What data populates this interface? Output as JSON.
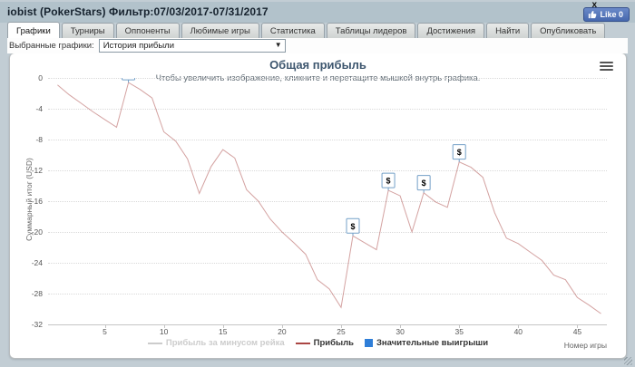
{
  "header": {
    "title": "iobist (PokerStars) Фильтр:07/03/2017-07/31/2017",
    "close": "x",
    "like_label": "Like 0"
  },
  "tabs": {
    "items": [
      {
        "label": "Графики",
        "active": true
      },
      {
        "label": "Турниры",
        "active": false
      },
      {
        "label": "Оппоненты",
        "active": false
      },
      {
        "label": "Любимые игры",
        "active": false
      },
      {
        "label": "Статистика",
        "active": false
      },
      {
        "label": "Таблицы лидеров",
        "active": false
      },
      {
        "label": "Достижения",
        "active": false
      },
      {
        "label": "Найти",
        "active": false
      },
      {
        "label": "Опубликовать",
        "active": false
      }
    ]
  },
  "controls": {
    "label": "Выбранные графики:",
    "selected": "История прибыли",
    "arrow": "▼"
  },
  "chart": {
    "title": "Общая прибыль",
    "subtitle": "Чтобы увеличить изображение, кликните и перетащите мышкой внутрь графика.",
    "yaxis_title": "Суммарный итог (USD)",
    "xaxis_title": "Номер игры",
    "legend": [
      {
        "label": "Прибыль за минусом рейка",
        "type": "line",
        "color": "#cccccc",
        "text_color": "#cccccc"
      },
      {
        "label": "Прибыль",
        "type": "line",
        "color": "#aa4643",
        "text_color": "#333333"
      },
      {
        "label": "Значительные выигрыши",
        "type": "square",
        "color": "#2f7ed8",
        "text_color": "#333333"
      }
    ],
    "colors": {
      "profit_line": "#aa4643",
      "profit_line_opacity": 0.5,
      "flag_border": "#74a0c8",
      "significant_win_square": "#2f7ed8",
      "grid": "#d9d9d9"
    }
  },
  "chart_data": {
    "type": "line",
    "title": "Общая прибыль",
    "xlabel": "Номер игры",
    "ylabel": "Суммарный итог (USD)",
    "xlim": [
      0.2,
      47.5
    ],
    "ylim": [
      -32,
      0
    ],
    "x_ticks": [
      5,
      10,
      15,
      20,
      25,
      30,
      35,
      40,
      45
    ],
    "y_ticks": [
      0,
      -4,
      -8,
      -12,
      -16,
      -20,
      -24,
      -28,
      -32
    ],
    "series": [
      {
        "name": "Прибыль",
        "points": [
          [
            1,
            -0.9
          ],
          [
            2,
            -2.2
          ],
          [
            3,
            -3.3
          ],
          [
            4,
            -4.4
          ],
          [
            5,
            -5.4
          ],
          [
            6,
            -6.4
          ],
          [
            7,
            -0.6
          ],
          [
            8,
            -1.5
          ],
          [
            9,
            -2.6
          ],
          [
            10,
            -7.0
          ],
          [
            11,
            -8.2
          ],
          [
            12,
            -10.5
          ],
          [
            13,
            -15.0
          ],
          [
            14,
            -11.5
          ],
          [
            15,
            -9.3
          ],
          [
            16,
            -10.4
          ],
          [
            17,
            -14.5
          ],
          [
            18,
            -16.0
          ],
          [
            19,
            -18.3
          ],
          [
            20,
            -20.0
          ],
          [
            21,
            -21.4
          ],
          [
            22,
            -22.9
          ],
          [
            23,
            -26.2
          ],
          [
            24,
            -27.4
          ],
          [
            25,
            -29.8
          ],
          [
            26,
            -20.5
          ],
          [
            27,
            -21.4
          ],
          [
            28,
            -22.3
          ],
          [
            29,
            -14.6
          ],
          [
            30,
            -15.3
          ],
          [
            31,
            -20.0
          ],
          [
            32,
            -14.9
          ],
          [
            33,
            -16.1
          ],
          [
            34,
            -16.8
          ],
          [
            35,
            -10.9
          ],
          [
            36,
            -11.6
          ],
          [
            37,
            -12.9
          ],
          [
            38,
            -17.5
          ],
          [
            39,
            -20.8
          ],
          [
            40,
            -21.5
          ],
          [
            41,
            -22.6
          ],
          [
            42,
            -23.7
          ],
          [
            43,
            -25.6
          ],
          [
            44,
            -26.2
          ],
          [
            45,
            -28.5
          ],
          [
            46,
            -29.5
          ],
          [
            47,
            -30.6
          ]
        ]
      }
    ],
    "significant_wins": {
      "symbol": "$",
      "games": [
        7,
        26,
        29,
        32,
        35
      ]
    }
  }
}
